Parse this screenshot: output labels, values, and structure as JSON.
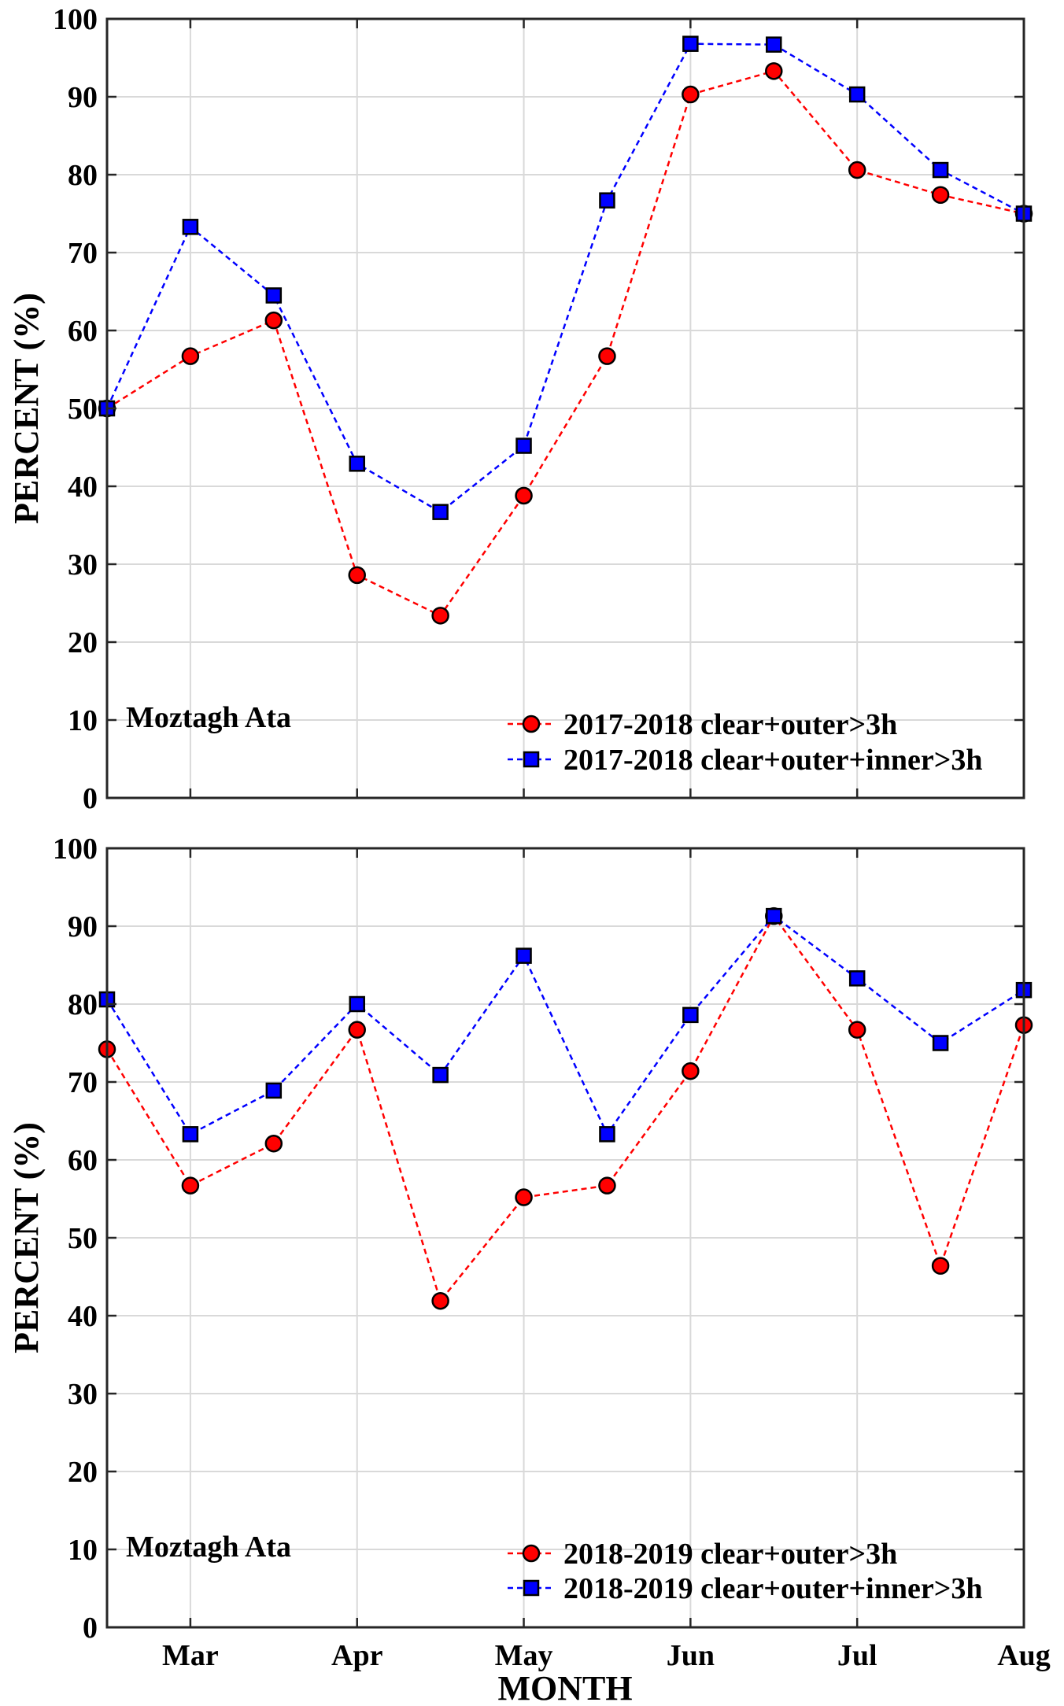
{
  "chart_data": [
    {
      "type": "line",
      "ylabel": "PERCENT (%)",
      "xlabel": "",
      "annotation": "Moztagh Ata",
      "ylim": [
        0,
        100
      ],
      "yticks": [
        0,
        10,
        20,
        30,
        40,
        50,
        60,
        70,
        80,
        90,
        100
      ],
      "xlim": [
        0,
        11
      ],
      "xticks": [
        1,
        3,
        5,
        7,
        9,
        11
      ],
      "xticklabels": [],
      "grid": true,
      "legend_position": "bottom-right",
      "series": [
        {
          "name": "2017-2018 clear+outer>3h",
          "color": "#ff0000",
          "marker": "circle",
          "x": [
            0,
            1,
            2,
            3,
            4,
            5,
            6,
            7,
            8,
            9,
            10,
            11
          ],
          "values": [
            50,
            56.7,
            61.3,
            28.6,
            23.4,
            38.8,
            56.7,
            90.3,
            93.3,
            80.6,
            77.4,
            75.0
          ]
        },
        {
          "name": "2017-2018 clear+outer+inner>3h",
          "color": "#0000ff",
          "marker": "square",
          "x": [
            0,
            1,
            2,
            3,
            4,
            5,
            6,
            7,
            8,
            9,
            10,
            11
          ],
          "values": [
            50,
            73.3,
            64.5,
            42.9,
            36.7,
            45.2,
            76.7,
            96.8,
            96.7,
            90.3,
            80.6,
            75.0
          ]
        }
      ]
    },
    {
      "type": "line",
      "ylabel": "PERCENT (%)",
      "xlabel": "MONTH",
      "annotation": "Moztagh Ata",
      "ylim": [
        0,
        100
      ],
      "yticks": [
        0,
        10,
        20,
        30,
        40,
        50,
        60,
        70,
        80,
        90,
        100
      ],
      "xlim": [
        0,
        11
      ],
      "xticks": [
        1,
        3,
        5,
        7,
        9,
        11
      ],
      "xticklabels": [
        "Mar",
        "Apr",
        "May",
        "Jun",
        "Jul",
        "Aug"
      ],
      "grid": true,
      "legend_position": "bottom-right",
      "series": [
        {
          "name": "2018-2019 clear+outer>3h",
          "color": "#ff0000",
          "marker": "circle",
          "x": [
            0,
            1,
            2,
            3,
            4,
            5,
            6,
            7,
            8,
            9,
            10,
            11
          ],
          "values": [
            74.2,
            56.7,
            62.1,
            76.7,
            41.9,
            55.2,
            56.7,
            71.4,
            91.3,
            76.7,
            46.4,
            77.3
          ]
        },
        {
          "name": "2018-2019 clear+outer+inner>3h",
          "color": "#0000ff",
          "marker": "square",
          "x": [
            0,
            1,
            2,
            3,
            4,
            5,
            6,
            7,
            8,
            9,
            10,
            11
          ],
          "values": [
            80.6,
            63.3,
            68.9,
            80.0,
            70.9,
            86.2,
            63.3,
            78.6,
            91.3,
            83.3,
            75.0,
            81.8
          ]
        }
      ]
    }
  ]
}
